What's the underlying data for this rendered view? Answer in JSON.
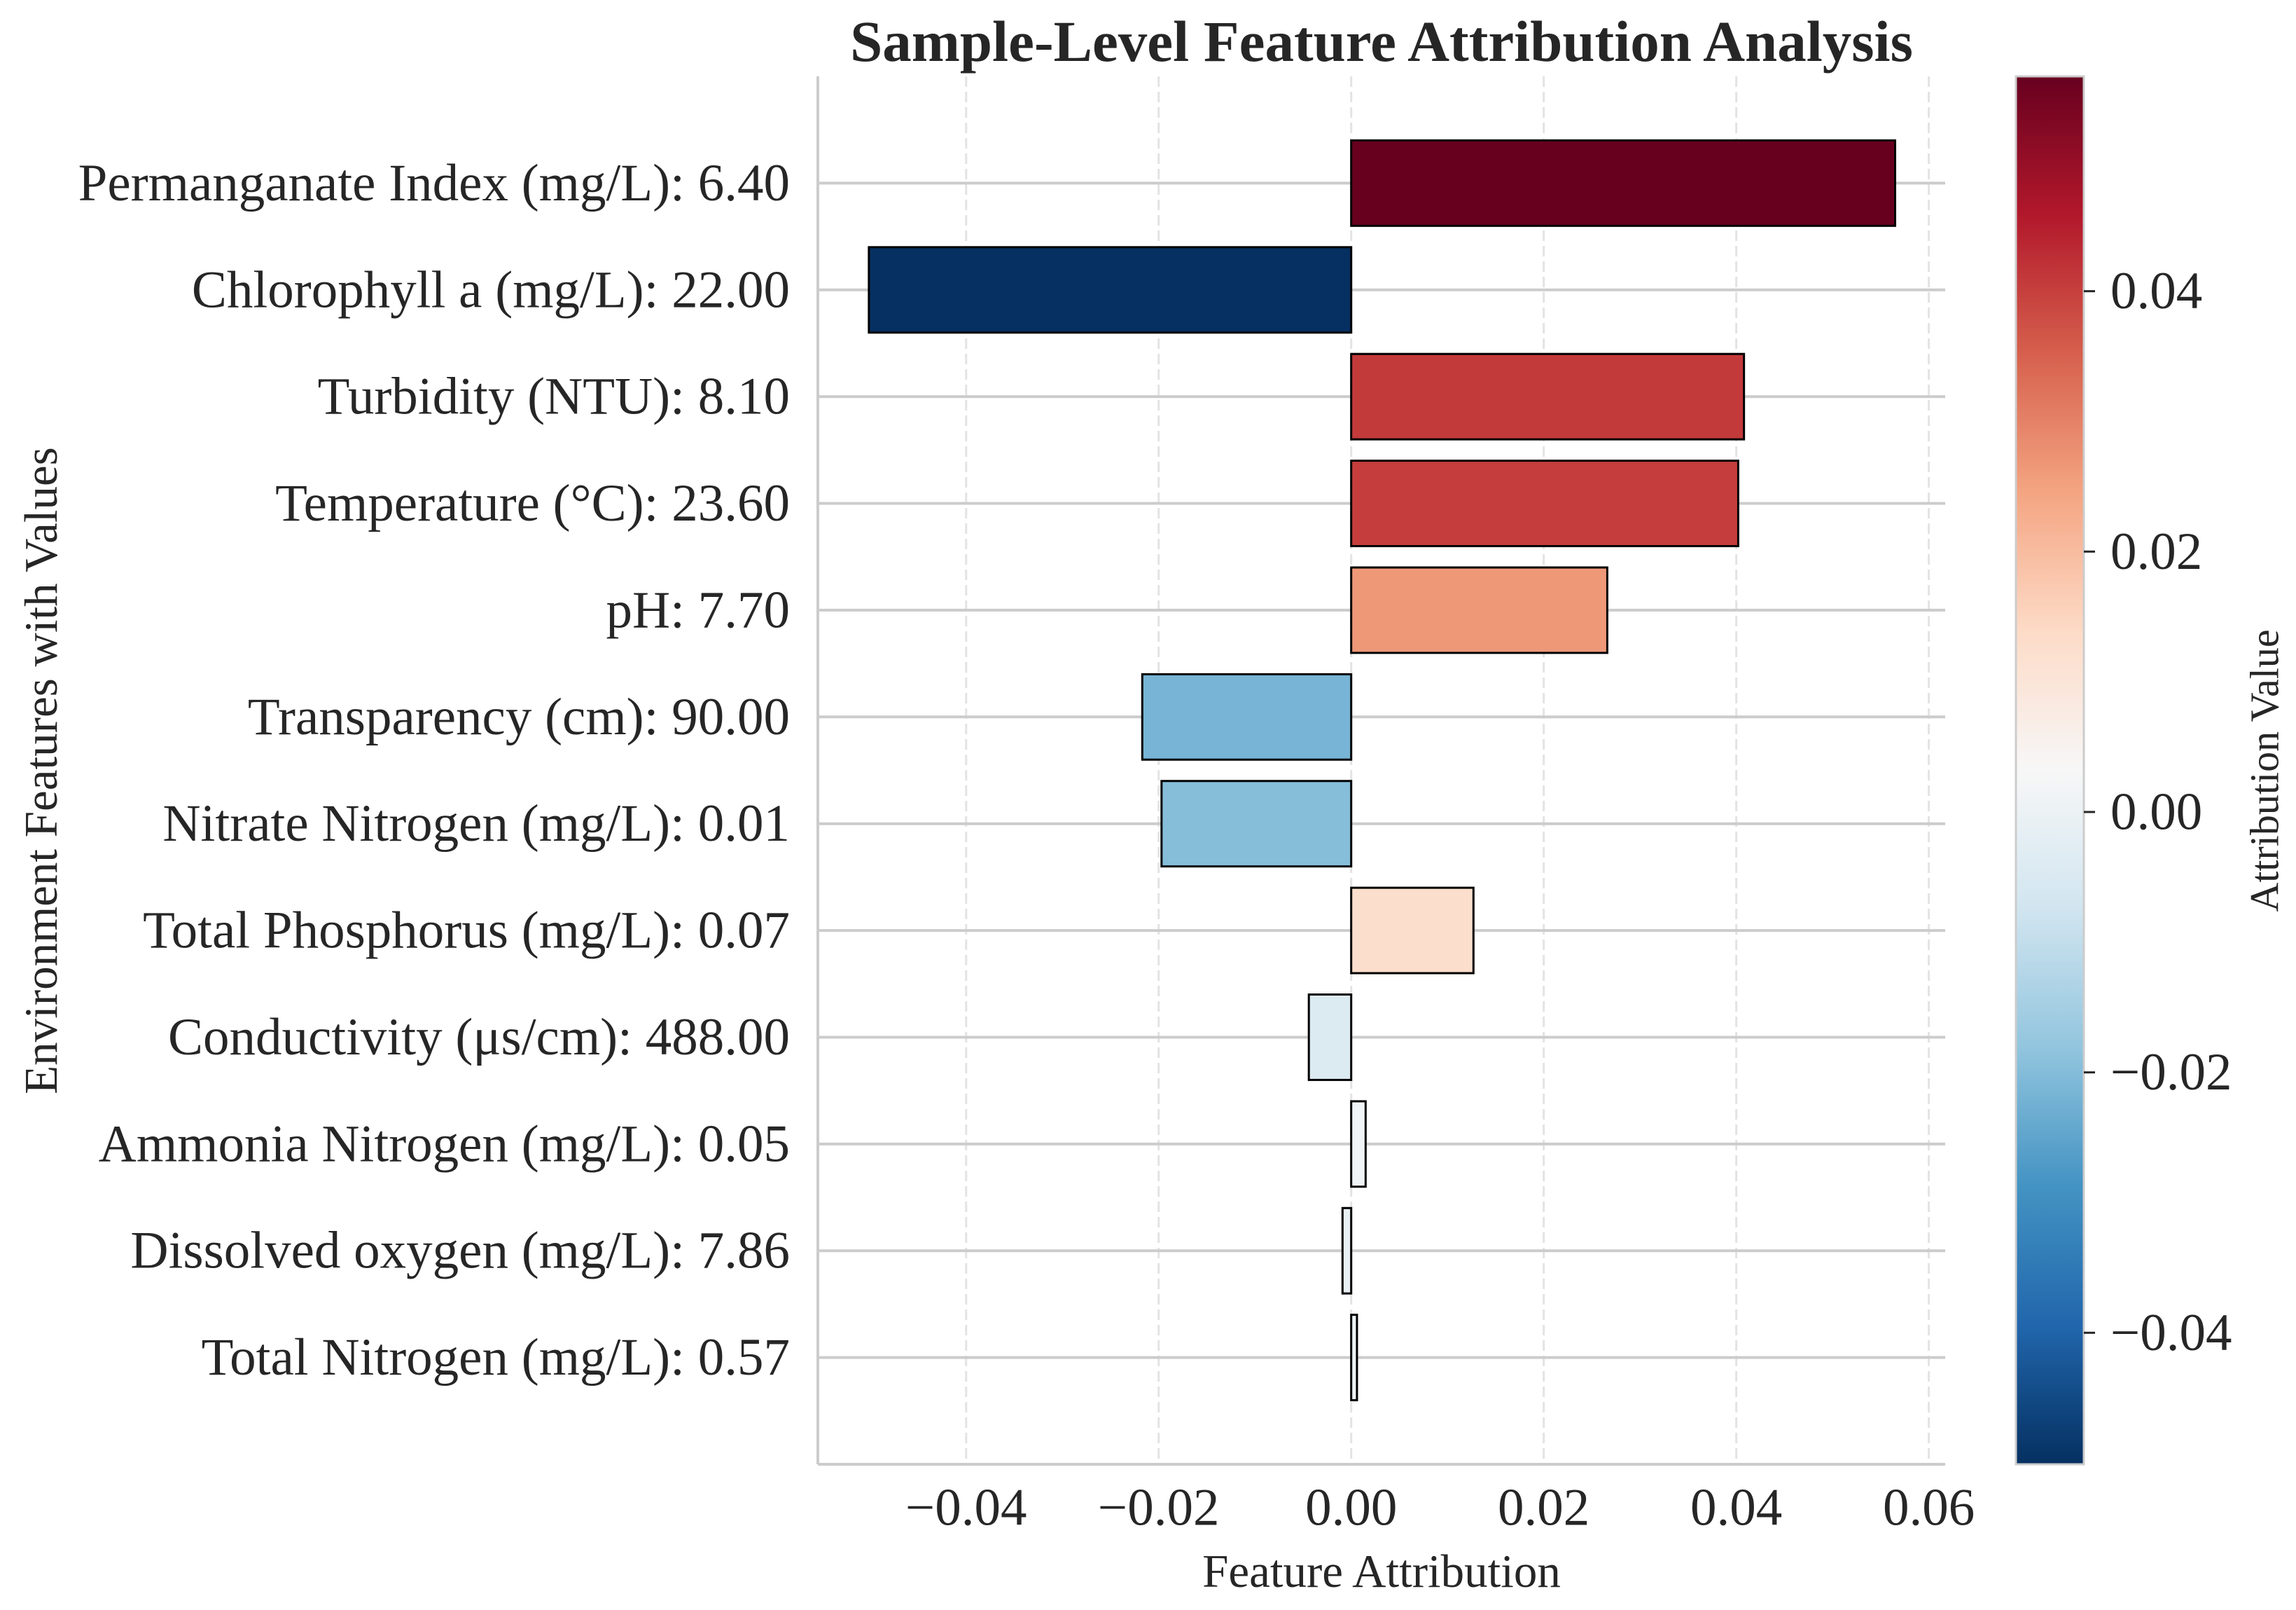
{
  "chart_data": {
    "type": "bar",
    "orientation": "horizontal",
    "title": "Sample-Level Feature Attribution Analysis",
    "xlabel": "Feature Attribution",
    "ylabel": "Environment Features with Values",
    "categories": [
      "Permanganate Index (mg/L): 6.40",
      "Chlorophyll a (mg/L): 22.00",
      "Turbidity (NTU): 8.10",
      "Temperature (°C): 23.60",
      "pH: 7.70",
      "Transparency (cm): 90.00",
      "Nitrate Nitrogen (mg/L): 0.01",
      "Total Phosphorus (mg/L): 0.07",
      "Conductivity (μs/cm): 488.00",
      "Ammonia Nitrogen (mg/L): 0.05",
      "Dissolved oxygen (mg/L): 7.86",
      "Total Nitrogen (mg/L): 0.57"
    ],
    "values": [
      0.0565,
      -0.0501,
      0.0408,
      0.0402,
      0.0266,
      -0.0217,
      -0.0197,
      0.0127,
      -0.0044,
      0.0015,
      -0.0009,
      0.0006
    ],
    "xlim": [
      -0.0554,
      0.0617
    ],
    "xticks": [
      -0.04,
      -0.02,
      0.0,
      0.02,
      0.04,
      0.06
    ],
    "xtick_labels": [
      "−0.04",
      "−0.02",
      "0.00",
      "0.02",
      "0.04",
      "0.06"
    ],
    "grid": {
      "x": true,
      "y": true
    },
    "bar_edge_color": "#000000",
    "colorbar": {
      "label": "Attribution Value",
      "clim": [
        -0.0501,
        0.0565
      ],
      "ticks": [
        0.04,
        0.02,
        0.0,
        -0.02,
        -0.04
      ],
      "tick_labels": [
        "0.04",
        "0.02",
        "0.00",
        "−0.02",
        "−0.04"
      ],
      "colormap": [
        "#053061",
        "#2166ac",
        "#4393c3",
        "#92c5de",
        "#d1e5f0",
        "#f7f7f7",
        "#fddbc7",
        "#f4a582",
        "#d6604d",
        "#b2182b",
        "#67001f"
      ]
    }
  }
}
